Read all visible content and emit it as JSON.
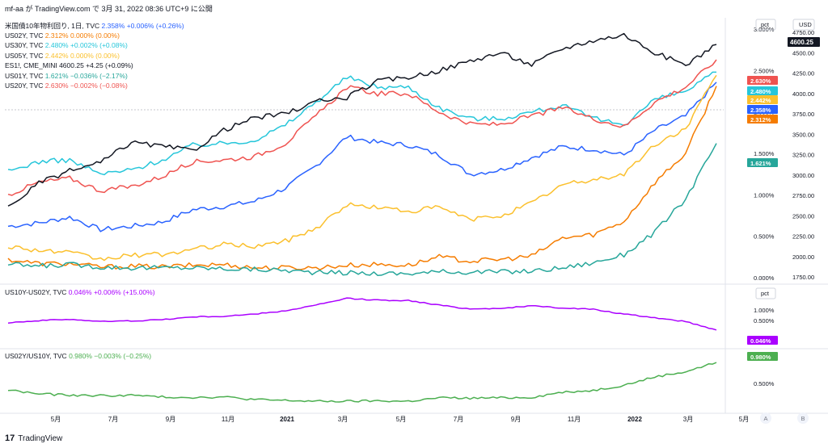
{
  "header": {
    "text": "mf-aa が TradingView.com で 3月 31, 2022 08:36 UTC+9 に公開"
  },
  "footer": {
    "brand": "TradingView",
    "logo": "17"
  },
  "panes": [
    {
      "unit": "pct",
      "legend": [
        {
          "sym": "米国債10年物利回り, 1日, TVC",
          "val": "2.358%",
          "chg": "+0.006% (+0.26%)",
          "color": "#2962ff"
        },
        {
          "sym": "US02Y, TVC",
          "val": "2.312%",
          "chg": "0.000% (0.00%)",
          "color": "#f57c00"
        },
        {
          "sym": "US30Y, TVC",
          "val": "2.480%",
          "chg": "+0.002% (+0.08%)",
          "color": "#26c6da"
        },
        {
          "sym": "US05Y, TVC",
          "val": "2.442%",
          "chg": "0.000% (0.00%)",
          "color": "#fbc02d"
        },
        {
          "sym": "ES1!, CME_MINI",
          "val": "4600.25",
          "chg": "+4.25 (+0.09%)",
          "color": "#131722"
        },
        {
          "sym": "US01Y, TVC",
          "val": "1.621%",
          "chg": "−0.036% (−2.17%)",
          "color": "#26a69a"
        },
        {
          "sym": "US20Y, TVC",
          "val": "2.630%",
          "chg": "−0.002% (−0.08%)",
          "color": "#ef5350"
        }
      ],
      "pct_ticks": [
        "3.000%",
        "2.500%",
        "2.000%",
        "1.500%",
        "1.000%",
        "0.500%",
        "0.000%"
      ],
      "usd_unit": "USD",
      "usd_ticks": [
        "4750.00",
        "4500.00",
        "4250.00",
        "4000.00",
        "3750.00",
        "3500.00",
        "3250.00",
        "3000.00",
        "2750.00",
        "2500.00",
        "2250.00",
        "2000.00",
        "1750.00"
      ],
      "last_labels": [
        {
          "text": "2.630%",
          "color": "#ef5350"
        },
        {
          "text": "2.480%",
          "color": "#26c6da"
        },
        {
          "text": "2.442%",
          "color": "#fbc02d"
        },
        {
          "text": "2.358%",
          "color": "#2962ff"
        },
        {
          "text": "2.312%",
          "color": "#f57c00"
        },
        {
          "text": "1.621%",
          "color": "#26a69a"
        }
      ],
      "usd_last": "4600.25"
    },
    {
      "unit": "pct",
      "legend": [
        {
          "sym": "US10Y-US02Y, TVC",
          "val": "0.046%",
          "chg": "+0.006% (+15.00%)",
          "color": "#aa00ff"
        }
      ],
      "pct_ticks": [
        "1.000%",
        "0.500%"
      ],
      "last_label": {
        "text": "0.046%",
        "color": "#aa00ff"
      }
    },
    {
      "legend": [
        {
          "sym": "US02Y/US10Y, TVC",
          "val": "0.980%",
          "chg": "−0.003% (−0.25%)",
          "color": "#4caf50"
        }
      ],
      "pct_ticks": [
        "0.500%"
      ],
      "last_label": {
        "text": "0.980%",
        "color": "#4caf50"
      }
    }
  ],
  "x_ticks": [
    "5月",
    "7月",
    "9月",
    "11月",
    "2021",
    "3月",
    "5月",
    "7月",
    "9月",
    "11月",
    "2022",
    "3月",
    "5月"
  ],
  "axis_buttons": [
    "A",
    "B"
  ],
  "chart_data": {
    "type": "line",
    "x": [
      "2020-04",
      "2020-05",
      "2020-06",
      "2020-07",
      "2020-08",
      "2020-09",
      "2020-10",
      "2020-11",
      "2020-12",
      "2021-01",
      "2021-02",
      "2021-03",
      "2021-04",
      "2021-05",
      "2021-06",
      "2021-07",
      "2021-08",
      "2021-09",
      "2021-10",
      "2021-11",
      "2021-12",
      "2022-01",
      "2022-02",
      "2022-03"
    ],
    "series": [
      {
        "name": "US10Y",
        "color": "#2962ff",
        "values": [
          0.62,
          0.66,
          0.73,
          0.58,
          0.62,
          0.67,
          0.82,
          0.86,
          0.92,
          1.08,
          1.35,
          1.7,
          1.63,
          1.6,
          1.48,
          1.25,
          1.3,
          1.45,
          1.58,
          1.55,
          1.48,
          1.78,
          1.95,
          2.358
        ]
      },
      {
        "name": "US02Y",
        "color": "#f57c00",
        "values": [
          0.22,
          0.17,
          0.17,
          0.13,
          0.14,
          0.13,
          0.15,
          0.16,
          0.12,
          0.12,
          0.12,
          0.15,
          0.16,
          0.15,
          0.25,
          0.2,
          0.22,
          0.26,
          0.48,
          0.52,
          0.68,
          1.15,
          1.5,
          2.312
        ]
      },
      {
        "name": "US30Y",
        "color": "#26c6da",
        "values": [
          1.28,
          1.4,
          1.42,
          1.25,
          1.3,
          1.42,
          1.6,
          1.62,
          1.66,
          1.84,
          2.12,
          2.42,
          2.3,
          2.3,
          2.05,
          1.92,
          1.92,
          2.0,
          2.08,
          1.92,
          1.85,
          2.15,
          2.25,
          2.48
        ]
      },
      {
        "name": "US05Y",
        "color": "#fbc02d",
        "values": [
          0.38,
          0.33,
          0.3,
          0.22,
          0.27,
          0.28,
          0.34,
          0.4,
          0.38,
          0.44,
          0.6,
          0.88,
          0.85,
          0.8,
          0.85,
          0.7,
          0.75,
          0.9,
          1.12,
          1.18,
          1.25,
          1.6,
          1.8,
          2.442
        ]
      },
      {
        "name": "US01Y",
        "color": "#26a69a",
        "values": [
          0.16,
          0.14,
          0.16,
          0.13,
          0.12,
          0.12,
          0.12,
          0.11,
          0.1,
          0.09,
          0.06,
          0.06,
          0.05,
          0.05,
          0.07,
          0.07,
          0.07,
          0.08,
          0.12,
          0.18,
          0.28,
          0.55,
          0.95,
          1.621
        ]
      },
      {
        "name": "US20Y",
        "color": "#ef5350",
        "values": [
          1.0,
          1.15,
          1.2,
          1.05,
          1.1,
          1.22,
          1.4,
          1.42,
          1.46,
          1.62,
          1.95,
          2.3,
          2.22,
          2.22,
          2.0,
          1.85,
          1.85,
          1.95,
          2.05,
          1.92,
          1.82,
          2.12,
          2.3,
          2.63
        ]
      },
      {
        "name": "ES1!",
        "color": "#131722",
        "axis": "usd",
        "values": [
          2600,
          2900,
          3050,
          3150,
          3400,
          3350,
          3300,
          3550,
          3700,
          3750,
          3900,
          3950,
          4150,
          4200,
          4280,
          4400,
          4500,
          4350,
          4550,
          4650,
          4720,
          4500,
          4350,
          4600.25
        ]
      },
      {
        "name": "US10Y-US02Y",
        "pane": 2,
        "color": "#aa00ff",
        "values": [
          0.4,
          0.49,
          0.56,
          0.45,
          0.48,
          0.54,
          0.67,
          0.7,
          0.8,
          0.96,
          1.23,
          1.55,
          1.47,
          1.45,
          1.23,
          1.05,
          1.08,
          1.19,
          1.1,
          1.03,
          0.8,
          0.63,
          0.45,
          0.046
        ]
      },
      {
        "name": "US02Y/US10Y",
        "pane": 3,
        "color": "#4caf50",
        "values": [
          0.35,
          0.26,
          0.23,
          0.22,
          0.23,
          0.19,
          0.18,
          0.19,
          0.13,
          0.11,
          0.09,
          0.09,
          0.1,
          0.09,
          0.17,
          0.16,
          0.17,
          0.18,
          0.3,
          0.34,
          0.46,
          0.65,
          0.77,
          0.98
        ]
      }
    ]
  }
}
